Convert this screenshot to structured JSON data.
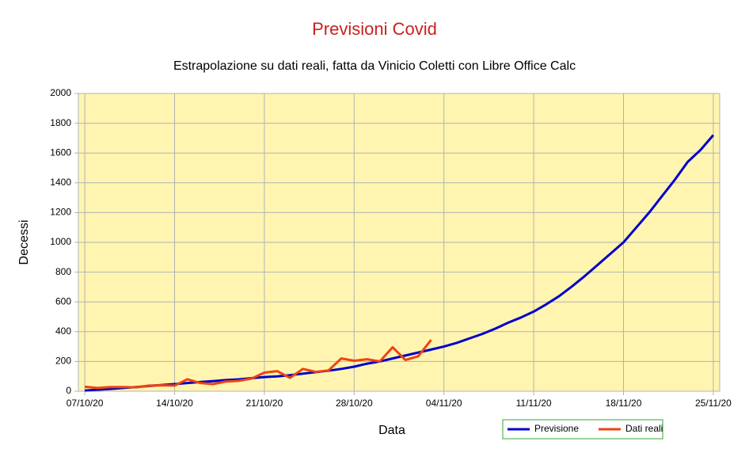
{
  "chart_data": {
    "type": "line",
    "title": "Previsioni Covid",
    "subtitle": "Estrapolazione su dati reali, fatta da Vinicio Coletti con Libre Office Calc",
    "x_label": "Data",
    "y_label": "Decessi",
    "categories": [
      "07/10/20",
      null,
      null,
      null,
      null,
      null,
      null,
      "14/10/20",
      null,
      null,
      null,
      null,
      null,
      null,
      "21/10/20",
      null,
      null,
      null,
      null,
      null,
      null,
      "28/10/20",
      null,
      null,
      null,
      null,
      null,
      null,
      "04/11/20",
      null,
      null,
      null,
      null,
      null,
      null,
      "11/11/20",
      null,
      null,
      null,
      null,
      null,
      null,
      "18/11/20",
      null,
      null,
      null,
      null,
      null,
      null,
      "25/11/20"
    ],
    "series": [
      {
        "name": "Previsione",
        "color": "#0000cc",
        "values": [
          5,
          10,
          15,
          22,
          28,
          35,
          42,
          48,
          55,
          62,
          68,
          75,
          80,
          88,
          95,
          100,
          108,
          118,
          128,
          138,
          150,
          165,
          185,
          200,
          220,
          240,
          260,
          280,
          300,
          325,
          355,
          385,
          420,
          460,
          495,
          535,
          585,
          640,
          705,
          775,
          850,
          925,
          1000,
          1100,
          1200,
          1310,
          1420,
          1540,
          1620,
          1720
        ]
      },
      {
        "name": "Dati reali",
        "color": "#ee4411",
        "values": [
          30,
          22,
          28,
          28,
          26,
          38,
          40,
          38,
          80,
          55,
          48,
          65,
          70,
          85,
          125,
          135,
          90,
          150,
          130,
          140,
          220,
          205,
          215,
          200,
          295,
          210,
          235,
          345,
          null,
          null,
          null,
          null,
          null,
          null,
          null,
          null,
          null,
          null,
          null,
          null,
          null,
          null,
          null,
          null,
          null,
          null,
          null,
          null,
          null,
          null
        ]
      }
    ],
    "ylim": [
      0,
      2000
    ],
    "yticks": [
      0,
      200,
      400,
      600,
      800,
      1000,
      1200,
      1400,
      1600,
      1800,
      2000
    ],
    "grid": true,
    "legend": "bottom-right"
  }
}
